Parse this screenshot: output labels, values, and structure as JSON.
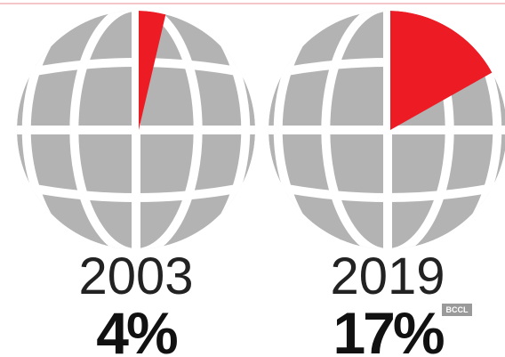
{
  "chart_data": [
    {
      "type": "pie",
      "title": "2003",
      "values": [
        4
      ],
      "value_labels": [
        "4%"
      ],
      "color": "#ed1c24"
    },
    {
      "type": "pie",
      "title": "2019",
      "values": [
        17
      ],
      "value_labels": [
        "17%"
      ],
      "color": "#ed1c24"
    }
  ],
  "watermark": "BCCL"
}
